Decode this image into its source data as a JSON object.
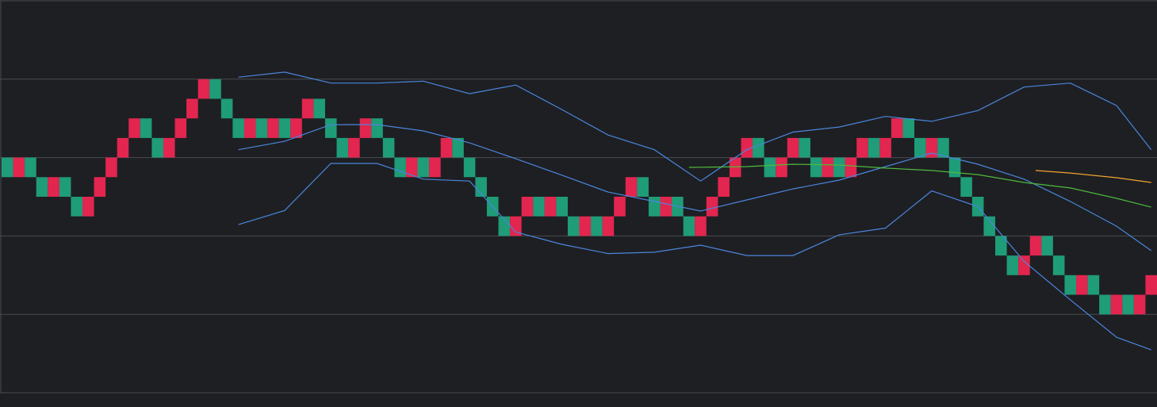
{
  "chart_data": {
    "type": "renko",
    "xlim": [
      -0.5,
      99.5
    ],
    "ylim": [
      0,
      20
    ],
    "yticks": [
      0,
      4,
      8,
      12,
      16,
      20
    ],
    "grid": true,
    "brick_size": 1,
    "up_color": "#e2264f",
    "down_color": "#1f9c78",
    "bricks": {
      "lows": [
        11,
        11,
        11,
        10,
        10,
        10,
        9,
        9,
        10,
        11,
        12,
        13,
        13,
        12,
        12,
        13,
        14,
        15,
        15,
        14,
        13,
        13,
        13,
        13,
        13,
        13,
        14,
        14,
        13,
        12,
        12,
        13,
        13,
        12,
        11,
        11,
        11,
        11,
        12,
        12,
        11,
        10,
        9,
        8,
        8,
        9,
        9,
        9,
        9,
        8,
        8,
        8,
        8,
        9,
        10,
        10,
        9,
        9,
        9,
        8,
        8,
        9,
        10,
        11,
        12,
        12,
        11,
        11,
        12,
        12,
        11,
        11,
        11,
        11,
        12,
        12,
        12,
        13,
        13,
        12,
        12,
        12,
        11,
        10,
        9,
        8,
        7,
        6,
        6,
        7,
        7,
        6,
        5,
        5,
        5,
        4,
        4,
        4,
        4,
        5
      ],
      "up": [
        false,
        true,
        false,
        false,
        true,
        false,
        false,
        true,
        true,
        true,
        true,
        true,
        false,
        false,
        true,
        true,
        true,
        true,
        false,
        false,
        false,
        true,
        false,
        true,
        false,
        true,
        true,
        false,
        false,
        false,
        true,
        true,
        false,
        false,
        false,
        true,
        false,
        true,
        true,
        false,
        false,
        false,
        false,
        false,
        true,
        true,
        false,
        true,
        false,
        false,
        true,
        false,
        true,
        true,
        true,
        false,
        false,
        true,
        false,
        false,
        true,
        true,
        true,
        true,
        true,
        false,
        false,
        true,
        true,
        false,
        false,
        true,
        false,
        true,
        true,
        false,
        true,
        true,
        false,
        false,
        true,
        false,
        false,
        false,
        false,
        false,
        false,
        false,
        true,
        true,
        false,
        false,
        false,
        true,
        false,
        false,
        true,
        false,
        true,
        true
      ]
    },
    "series": [
      {
        "color": "#4a86dc",
        "x": [
          20,
          24,
          28,
          32,
          36,
          40,
          44,
          48,
          52,
          56,
          60,
          64,
          68,
          72,
          76,
          80,
          84,
          88,
          92,
          96,
          99
        ],
        "values": [
          16.1,
          16.36,
          15.8,
          15.8,
          15.9,
          15.26,
          15.7,
          14.45,
          13.15,
          12.4,
          10.8,
          12.4,
          13.3,
          13.56,
          14.1,
          13.85,
          14.4,
          15.6,
          15.8,
          14.65,
          12.4
        ]
      },
      {
        "color": "#4a86dc",
        "x": [
          20,
          24,
          28,
          32,
          36,
          40,
          44,
          48,
          52,
          56,
          60,
          64,
          68,
          72,
          76,
          80,
          84,
          88,
          92,
          96,
          99
        ],
        "values": [
          12.4,
          12.83,
          13.68,
          13.68,
          13.36,
          12.75,
          11.94,
          11.1,
          10.24,
          9.76,
          9.27,
          9.84,
          10.4,
          10.85,
          11.54,
          12.23,
          11.66,
          10.9,
          9.76,
          8.5,
          7.25
        ]
      },
      {
        "color": "#4a86dc",
        "x": [
          20,
          24,
          28,
          32,
          36,
          40,
          44,
          48,
          52,
          56,
          60,
          64,
          68,
          72,
          76,
          80,
          84,
          88,
          92,
          96,
          99
        ],
        "values": [
          8.58,
          9.3,
          11.7,
          11.7,
          10.9,
          10.8,
          8.2,
          7.57,
          7.1,
          7.17,
          7.53,
          7.0,
          7.0,
          8.06,
          8.4,
          10.3,
          9.5,
          6.7,
          4.74,
          2.83,
          2.19
        ]
      },
      {
        "color": "#4cbb3c",
        "x": [
          59,
          64,
          68,
          72,
          76,
          80,
          84,
          88,
          92,
          96,
          99
        ],
        "values": [
          11.5,
          11.54,
          11.66,
          11.62,
          11.46,
          11.34,
          11.13,
          10.73,
          10.45,
          9.92,
          9.47
        ]
      },
      {
        "color": "#f0a52c",
        "x": [
          89,
          92,
          96,
          99
        ],
        "values": [
          11.34,
          11.21,
          10.97,
          10.73
        ]
      }
    ]
  }
}
